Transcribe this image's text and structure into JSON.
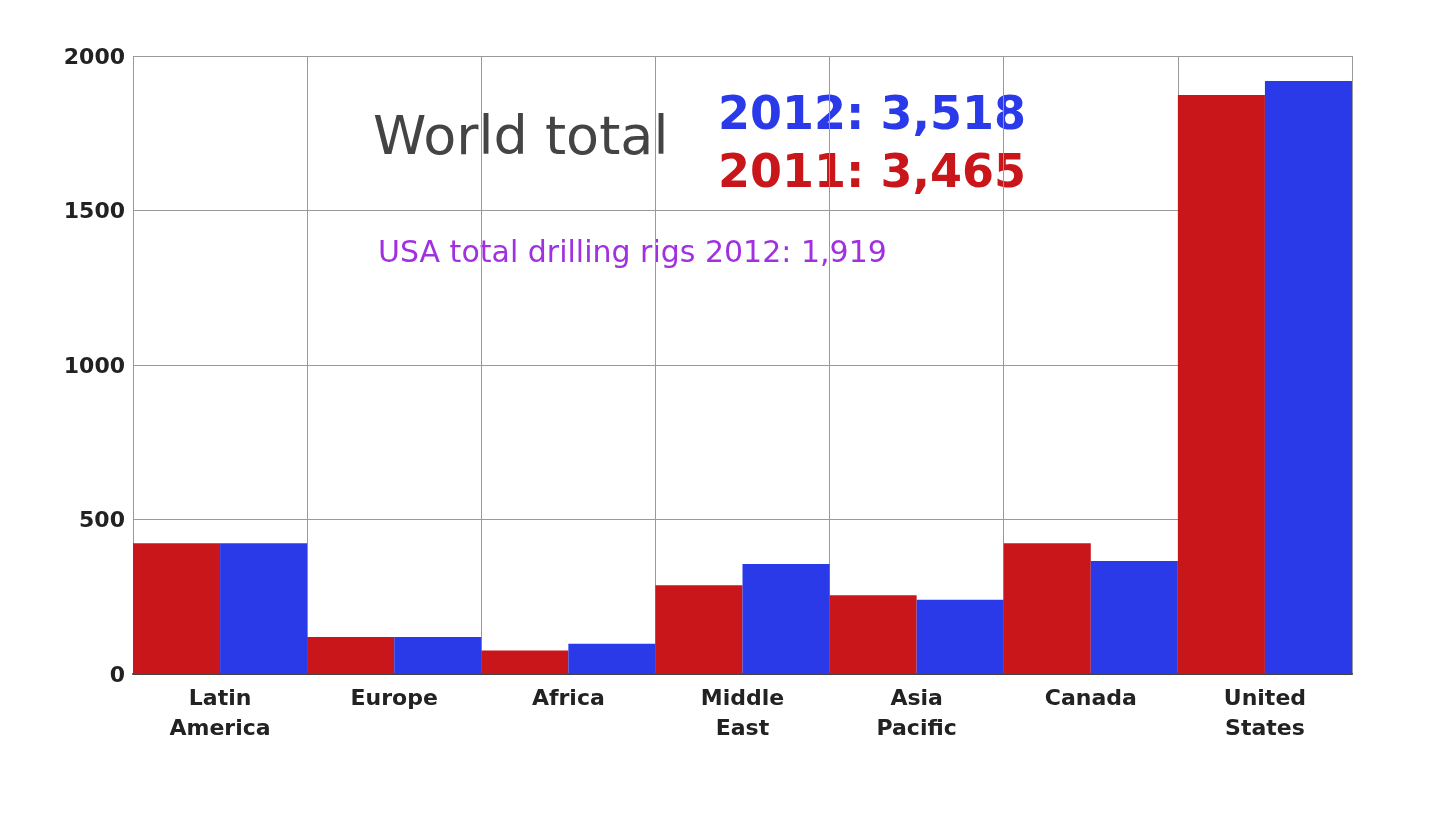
{
  "chart_data": {
    "type": "bar",
    "categories": [
      "Latin America",
      "Europe",
      "Africa",
      "Middle East",
      "Asia Pacific",
      "Canada",
      "United States"
    ],
    "series": [
      {
        "color": "#c8161a",
        "values": [
          423,
          120,
          76,
          287,
          255,
          423,
          1874
        ]
      },
      {
        "color": "#2a3ae8",
        "values": [
          423,
          120,
          98,
          356,
          240,
          366,
          1919
        ]
      }
    ],
    "ylim": [
      0,
      2000
    ],
    "yticks": [
      0,
      500,
      1000,
      1500,
      2000
    ],
    "grid": true,
    "annotations": [
      "World total",
      "2012: 3,518",
      "2011: 3,465",
      "USA total drilling rigs 2012: 1,919"
    ]
  }
}
